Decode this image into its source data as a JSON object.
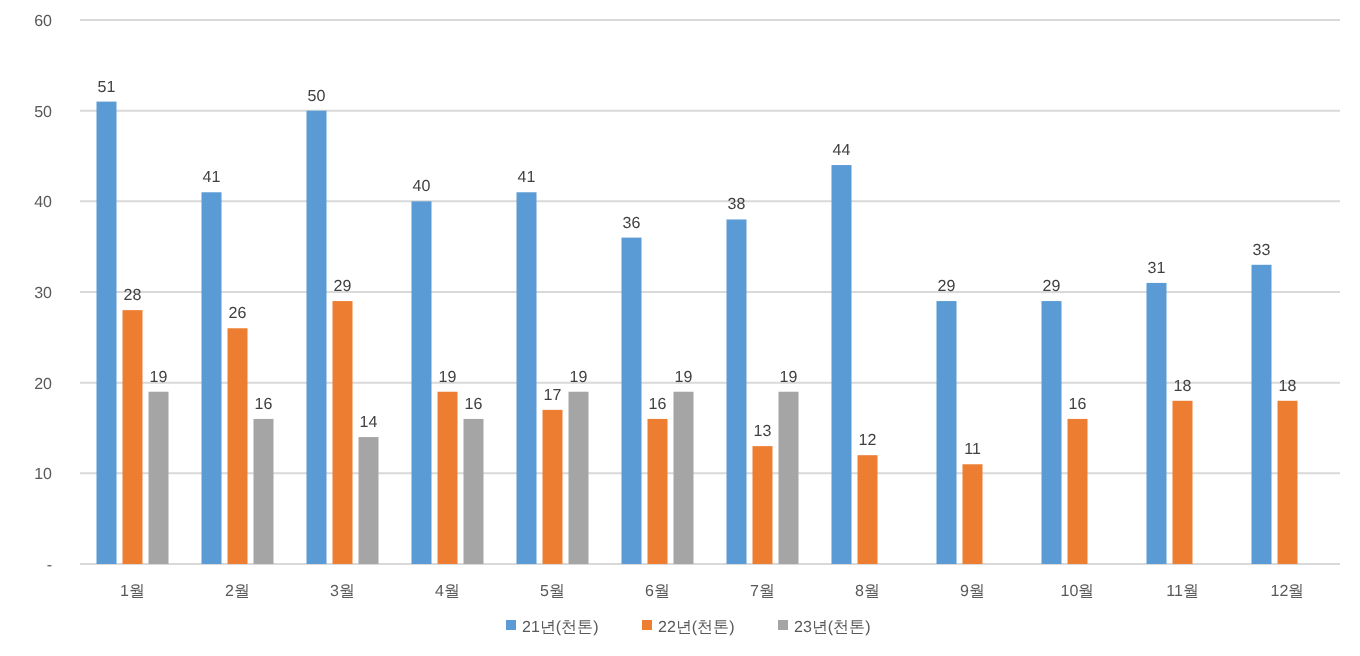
{
  "chart_data": {
    "type": "bar",
    "categories": [
      "1월",
      "2월",
      "3월",
      "4월",
      "5월",
      "6월",
      "7월",
      "8월",
      "9월",
      "10월",
      "11월",
      "12월"
    ],
    "series": [
      {
        "name": "21년(천톤)",
        "color": "#5b9bd5",
        "values": [
          51,
          41,
          50,
          40,
          41,
          36,
          38,
          44,
          29,
          29,
          31,
          33
        ]
      },
      {
        "name": "22년(천톤)",
        "color": "#ed7d31",
        "values": [
          28,
          26,
          29,
          19,
          17,
          16,
          13,
          12,
          11,
          16,
          18,
          18
        ]
      },
      {
        "name": "23년(천톤)",
        "color": "#a5a5a5",
        "values": [
          19,
          16,
          14,
          16,
          19,
          19,
          19,
          null,
          null,
          null,
          null,
          null
        ]
      }
    ],
    "ylim": [
      0,
      60
    ],
    "yticks": [
      {
        "value": 0,
        "label": "-"
      },
      10,
      20,
      30,
      40,
      50,
      60
    ],
    "grid": "y",
    "legend": "bottom",
    "data_labels": true
  }
}
